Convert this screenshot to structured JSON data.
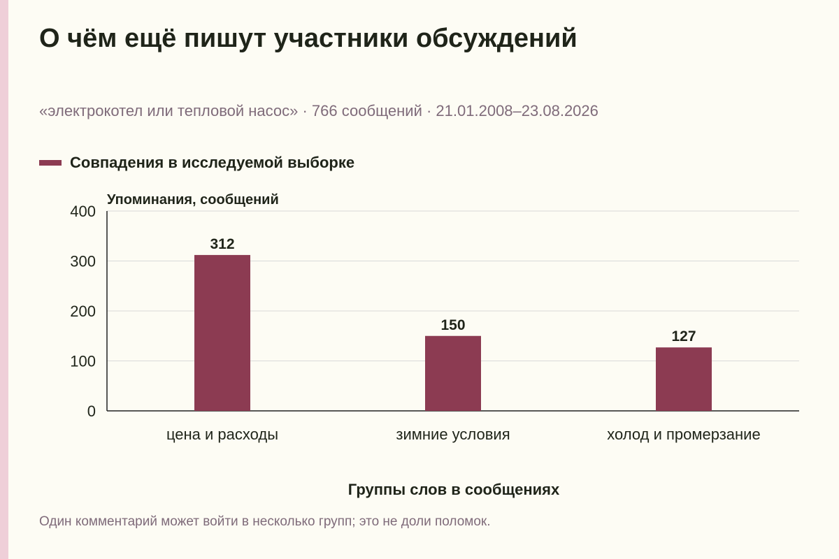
{
  "header": {
    "title": "О чём ещё пишут участники обсуждений",
    "subtitle": "«электрокотел или тепловой насос» · 766 сообщений · 21.01.2008–23.08.2026"
  },
  "colors": {
    "bar": "#8c3b52",
    "grid": "#d9d9d9",
    "axis": "#222222",
    "background": "#fdfcf4"
  },
  "chart_data": {
    "type": "bar",
    "title": "",
    "xlabel": "Группы слов в сообщениях",
    "ylabel": "Упоминания, сообщений",
    "ylim": [
      0,
      400
    ],
    "yticks": [
      0,
      100,
      200,
      300,
      400
    ],
    "grid": true,
    "legend": "top-left",
    "categories": [
      "цена и расходы",
      "зимние условия",
      "холод и промерзание"
    ],
    "series": [
      {
        "name": "Совпадения в исследуемой выборке",
        "values": [
          312,
          150,
          127
        ]
      }
    ]
  },
  "footer": {
    "note": "Один комментарий может войти в несколько групп; это не доли поломок."
  }
}
